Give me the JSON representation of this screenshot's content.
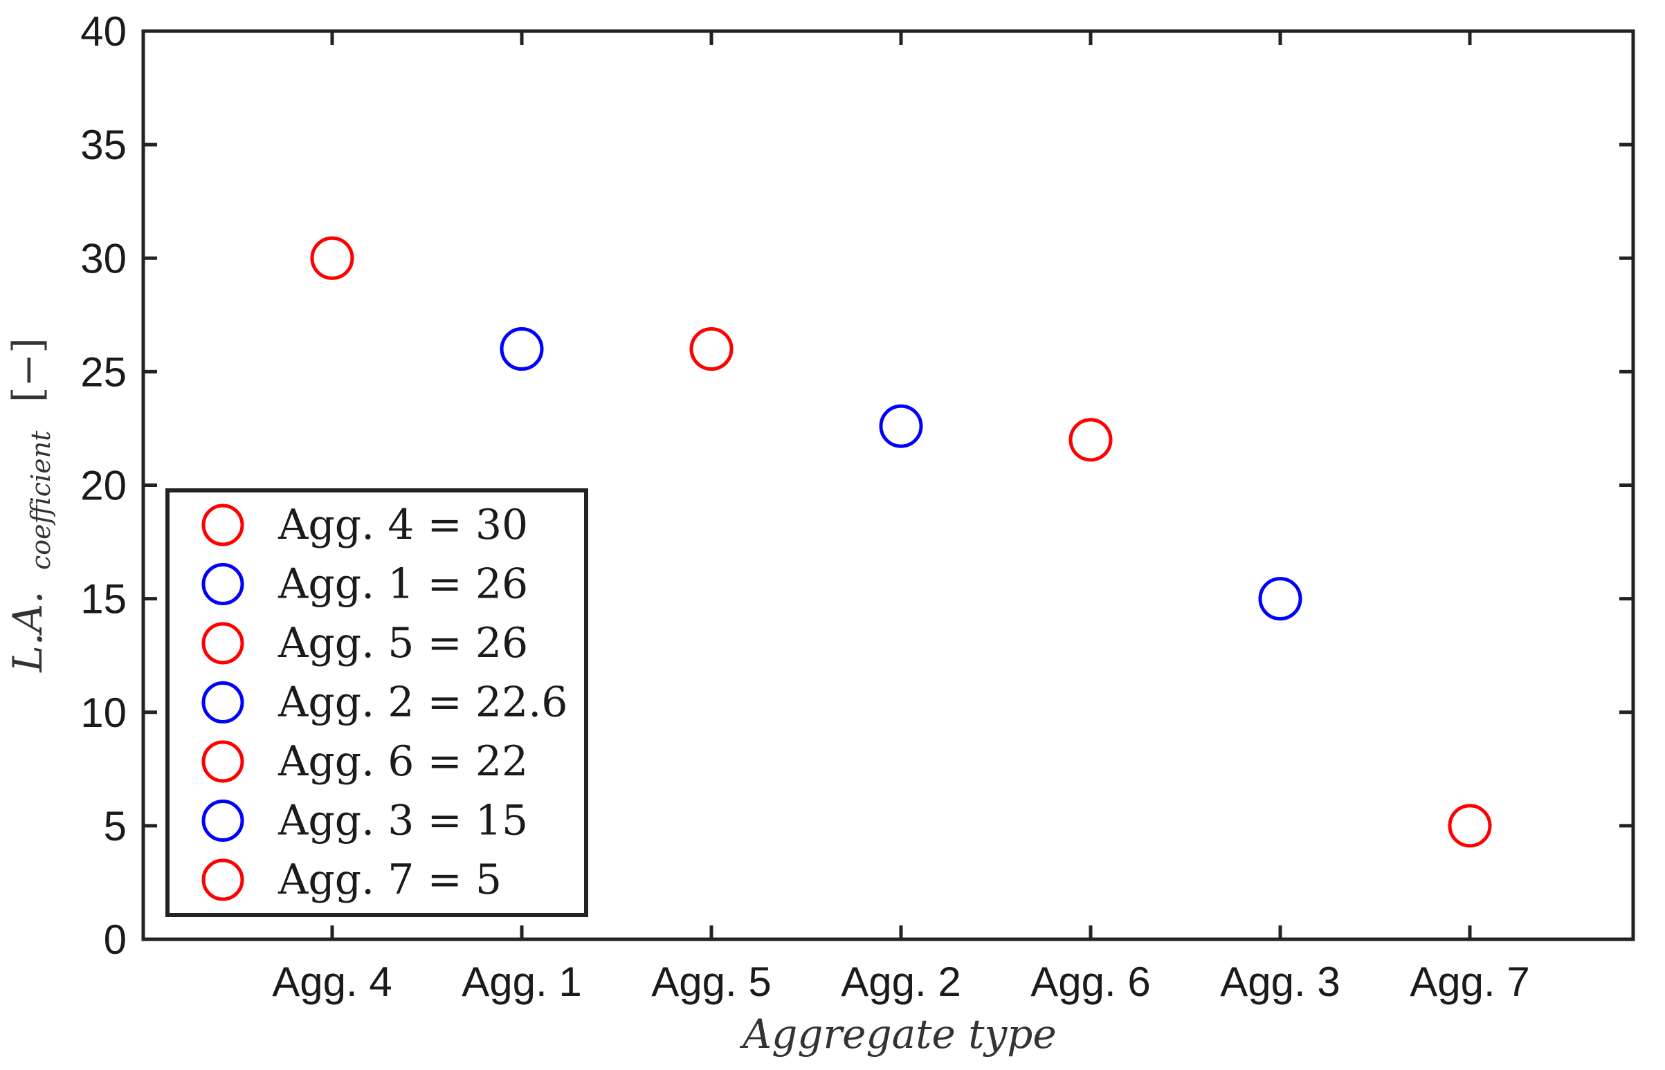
{
  "chart_data": {
    "type": "scatter",
    "xlabel": "Aggregate type",
    "ylabel": {
      "main": "L.A.",
      "subscript": "coefficient",
      "unit": "[−]"
    },
    "ylim": [
      0,
      40
    ],
    "yticks": [
      "0",
      "5",
      "10",
      "15",
      "20",
      "25",
      "30",
      "35",
      "40"
    ],
    "categories": [
      "Agg. 4",
      "Agg. 1",
      "Agg. 5",
      "Agg. 2",
      "Agg. 6",
      "Agg. 3",
      "Agg. 7"
    ],
    "values": [
      30,
      26,
      26,
      22.6,
      22,
      15,
      5
    ],
    "marker_colors": [
      "#ff0000",
      "#0000ff",
      "#ff0000",
      "#0000ff",
      "#ff0000",
      "#0000ff",
      "#ff0000"
    ],
    "marker": "open-circle",
    "grid": false,
    "legend_position": "bottom-left",
    "legend": [
      "Agg.  4 = 30",
      "Agg.  1 = 26",
      "Agg.  5 = 26",
      "Agg.  2 = 22.6",
      "Agg.  6 = 22",
      "Agg.  3 = 15",
      "Agg.  7 = 5"
    ]
  }
}
